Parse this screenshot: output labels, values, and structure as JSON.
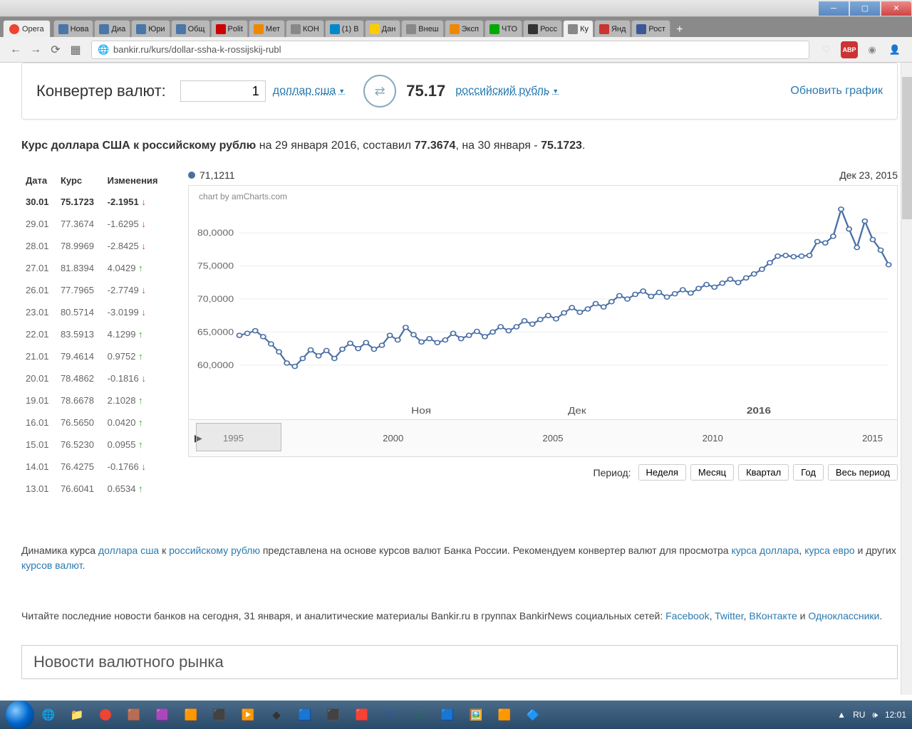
{
  "window": {
    "opera_label": "Opera"
  },
  "tabs": [
    {
      "label": "Нова",
      "color": "#4a76a8"
    },
    {
      "label": "Диа",
      "color": "#4a76a8"
    },
    {
      "label": "Юри",
      "color": "#4a76a8"
    },
    {
      "label": "Общ",
      "color": "#4a76a8"
    },
    {
      "label": "Polit",
      "color": "#c00"
    },
    {
      "label": "Мет",
      "color": "#e80"
    },
    {
      "label": "КОН",
      "color": "#888"
    },
    {
      "label": "(1) В",
      "color": "#08c"
    },
    {
      "label": "Дан",
      "color": "#fc0"
    },
    {
      "label": "Внеш",
      "color": "#888"
    },
    {
      "label": "Эксп",
      "color": "#e80"
    },
    {
      "label": "ЧТО",
      "color": "#0a0"
    },
    {
      "label": "Росс",
      "color": "#333"
    },
    {
      "label": "Ку",
      "color": "#888",
      "active": true
    },
    {
      "label": "Янд",
      "color": "#c33"
    },
    {
      "label": "Рост",
      "color": "#3b5998"
    }
  ],
  "url": "bankir.ru/kurs/dollar-ssha-k-rossijskij-rubl",
  "converter": {
    "title": "Конвертер валют:",
    "amount": "1",
    "from": "доллар сша",
    "result": "75.17",
    "to": "российский рубль",
    "update": "Обновить график"
  },
  "headline": {
    "t1": "Курс доллара США к российскому рублю",
    "t2": " на 29 января 2016, составил ",
    "v1": "77.3674",
    "t3": ", на 30 января - ",
    "v2": "75.1723",
    "t4": "."
  },
  "table": {
    "h1": "Дата",
    "h2": "Курс",
    "h3": "Изменения",
    "rows": [
      {
        "d": "30.01",
        "r": "75.1723",
        "c": "-2.1951",
        "dir": "down"
      },
      {
        "d": "29.01",
        "r": "77.3674",
        "c": "-1.6295",
        "dir": "down"
      },
      {
        "d": "28.01",
        "r": "78.9969",
        "c": "-2.8425",
        "dir": "down"
      },
      {
        "d": "27.01",
        "r": "81.8394",
        "c": "4.0429",
        "dir": "up"
      },
      {
        "d": "26.01",
        "r": "77.7965",
        "c": "-2.7749",
        "dir": "down"
      },
      {
        "d": "23.01",
        "r": "80.5714",
        "c": "-3.0199",
        "dir": "down"
      },
      {
        "d": "22.01",
        "r": "83.5913",
        "c": "4.1299",
        "dir": "up"
      },
      {
        "d": "21.01",
        "r": "79.4614",
        "c": "0.9752",
        "dir": "up"
      },
      {
        "d": "20.01",
        "r": "78.4862",
        "c": "-0.1816",
        "dir": "down"
      },
      {
        "d": "19.01",
        "r": "78.6678",
        "c": "2.1028",
        "dir": "up"
      },
      {
        "d": "16.01",
        "r": "76.5650",
        "c": "0.0420",
        "dir": "up"
      },
      {
        "d": "15.01",
        "r": "76.5230",
        "c": "0.0955",
        "dir": "up"
      },
      {
        "d": "14.01",
        "r": "76.4275",
        "c": "-0.1766",
        "dir": "down"
      },
      {
        "d": "13.01",
        "r": "76.6041",
        "c": "0.6534",
        "dir": "up"
      }
    ]
  },
  "chart": {
    "cursor_value": "71,1211",
    "cursor_date": "Дек 23, 2015",
    "credit": "chart by amCharts.com",
    "ylabels": [
      "80,0000",
      "75,0000",
      "70,0000",
      "65,0000",
      "60,0000"
    ],
    "yvalues": [
      80,
      75,
      70,
      65,
      60
    ],
    "ymin": 55,
    "ymax": 85,
    "xlabels": [
      "Ноя",
      "Дек",
      "2016"
    ],
    "xpositions": [
      0.28,
      0.52,
      0.8
    ],
    "line_color": "#4a6fa5",
    "marker_fill": "#ffffff",
    "grid_color": "#eeeeee",
    "data": [
      64.5,
      64.8,
      65.2,
      64.3,
      63.2,
      62.0,
      60.3,
      59.8,
      61.0,
      62.3,
      61.4,
      62.2,
      61.0,
      62.4,
      63.3,
      62.5,
      63.4,
      62.4,
      63.0,
      64.5,
      63.8,
      65.7,
      64.6,
      63.5,
      64.0,
      63.4,
      63.8,
      64.8,
      64.0,
      64.5,
      65.1,
      64.3,
      65.0,
      65.8,
      65.2,
      65.8,
      66.7,
      66.2,
      66.9,
      67.5,
      67.0,
      67.9,
      68.7,
      68.0,
      68.5,
      69.3,
      68.8,
      69.6,
      70.5,
      70.0,
      70.7,
      71.2,
      70.4,
      71.0,
      70.3,
      70.8,
      71.4,
      70.9,
      71.6,
      72.2,
      71.8,
      72.4,
      73.0,
      72.5,
      73.2,
      73.8,
      74.5,
      75.5,
      76.5,
      76.6,
      76.4,
      76.5,
      76.6,
      78.7,
      78.5,
      79.5,
      83.6,
      80.6,
      77.8,
      81.8,
      79.0,
      77.4,
      75.2
    ]
  },
  "timeline": {
    "years": [
      "1995",
      "2000",
      "2005",
      "2010",
      "2015"
    ]
  },
  "period": {
    "label": "Период:",
    "buttons": [
      "Неделя",
      "Месяц",
      "Квартал",
      "Год",
      "Весь период"
    ]
  },
  "footer1": {
    "p1": "Динамика курса ",
    "a1": "доллара сша",
    "p2": " к ",
    "a2": "российскому рублю",
    "p3": " представлена на основе курсов валют Банка России. Рекомендуем конвертер валют для просмотра ",
    "a3": "курса доллара",
    "p4": ", ",
    "a4": "курса евро",
    "p5": " и других ",
    "a5": "курсов валют",
    "p6": "."
  },
  "footer2": {
    "p1": "Читайте последние новости банков на сегодня, 31 января, и аналитические материалы Bankir.ru в группах BankirNews социальных сетей: ",
    "a1": "Facebook",
    "p2": ", ",
    "a2": "Twitter",
    "p3": ", ",
    "a3": "ВКонтакте",
    "p4": " и ",
    "a4": "Одноклассники",
    "p5": "."
  },
  "news_heading": "Новости валютного рынка",
  "tray": {
    "lang": "RU",
    "time": "12:01"
  }
}
